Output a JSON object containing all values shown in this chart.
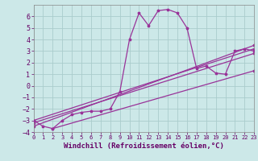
{
  "background_color": "#cce8e8",
  "grid_color": "#aacccc",
  "line_color": "#993399",
  "xlabel": "Windchill (Refroidissement éolien,°C)",
  "xlim": [
    0,
    23
  ],
  "ylim": [
    -4,
    7
  ],
  "xticks": [
    0,
    1,
    2,
    3,
    4,
    5,
    6,
    7,
    8,
    9,
    10,
    11,
    12,
    13,
    14,
    15,
    16,
    17,
    18,
    19,
    20,
    21,
    22,
    23
  ],
  "yticks": [
    -4,
    -3,
    -2,
    -1,
    0,
    1,
    2,
    3,
    4,
    5,
    6
  ],
  "series": [
    [
      0,
      -3.0
    ],
    [
      1,
      -3.5
    ],
    [
      2,
      -3.7
    ],
    [
      3,
      -3.0
    ],
    [
      4,
      -2.5
    ],
    [
      5,
      -2.3
    ],
    [
      6,
      -2.2
    ],
    [
      7,
      -2.2
    ],
    [
      8,
      -2.0
    ],
    [
      9,
      -0.5
    ],
    [
      10,
      4.0
    ],
    [
      11,
      6.3
    ],
    [
      12,
      5.2
    ],
    [
      13,
      6.5
    ],
    [
      14,
      6.6
    ],
    [
      15,
      6.3
    ],
    [
      16,
      5.0
    ],
    [
      17,
      1.5
    ],
    [
      18,
      1.7
    ],
    [
      19,
      1.1
    ],
    [
      20,
      1.0
    ],
    [
      21,
      3.0
    ],
    [
      22,
      3.2
    ],
    [
      23,
      3.0
    ]
  ],
  "linear_series": [
    [
      [
        0,
        -3.0
      ],
      [
        23,
        3.2
      ]
    ],
    [
      [
        0,
        -3.2
      ],
      [
        23,
        2.8
      ]
    ],
    [
      [
        0,
        -3.5
      ],
      [
        23,
        3.5
      ]
    ],
    [
      [
        2,
        -3.7
      ],
      [
        23,
        1.3
      ]
    ]
  ],
  "tick_color": "#660066",
  "xlabel_fontsize": 6.5,
  "xlabel_color": "#660066",
  "ytick_fontsize": 6,
  "xtick_fontsize": 5
}
